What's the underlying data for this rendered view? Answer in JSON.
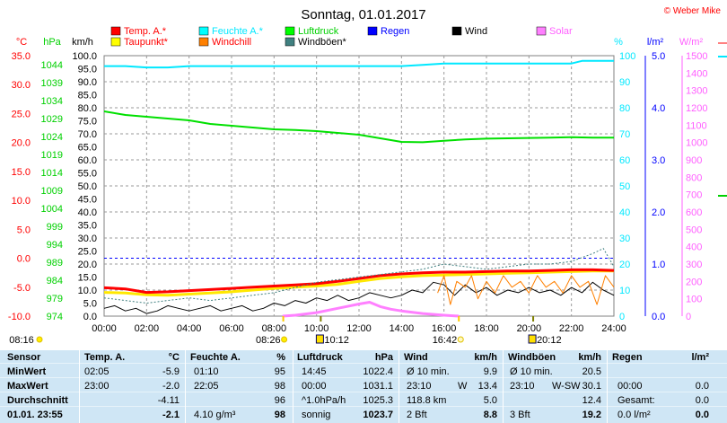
{
  "header": {
    "title": "Sonntag, 01.01.2017",
    "copyright": "© Weber Mike"
  },
  "legend": [
    {
      "label": "Temp. A.*",
      "color": "#ff0000"
    },
    {
      "label": "Feuchte A.*",
      "color": "#00ffff"
    },
    {
      "label": "Luftdruck",
      "color": "#00ff00"
    },
    {
      "label": "Regen",
      "color": "#0000ff"
    },
    {
      "label": "Wind",
      "color": "#000000"
    },
    {
      "label": "Solar",
      "color": "#ff80ff"
    },
    {
      "label": "Taupunkt*",
      "color": "#ffff00"
    },
    {
      "label": "Windchill",
      "color": "#ff8000"
    },
    {
      "label": "Windböen*",
      "color": "#408080"
    }
  ],
  "axis_units": {
    "temp": "°C",
    "pressure": "hPa",
    "wind": "km/h",
    "humidity": "%",
    "rain": "l/m²",
    "solar": "W/m²"
  },
  "sun_markers": {
    "sunrise_left": "08:16",
    "sunrise": "08:26",
    "moonset": "10:12",
    "sunset": "16:42",
    "moonrise": "20:12"
  },
  "chart_data": {
    "type": "line",
    "x_unit": "time",
    "x_ticks": [
      "00:00",
      "02:00",
      "04:00",
      "06:00",
      "08:00",
      "10:00",
      "12:00",
      "14:00",
      "16:00",
      "18:00",
      "20:00",
      "22:00",
      "24:00"
    ],
    "axes": {
      "temp": {
        "label": "°C",
        "range": [
          -10,
          35
        ],
        "ticks": [
          "35.0",
          "30.0",
          "25.0",
          "20.0",
          "15.0",
          "10.0",
          "5.0",
          "0.0",
          "-5.0",
          "-10.0"
        ]
      },
      "pressure": {
        "label": "hPa",
        "range": [
          974,
          1046.5
        ],
        "ticks": [
          "1044",
          "1039",
          "1034",
          "1029",
          "1024",
          "1019",
          "1014",
          "1009",
          "1004",
          "999",
          "994",
          "989",
          "984",
          "979",
          "974"
        ]
      },
      "wind": {
        "label": "km/h",
        "range": [
          0,
          100
        ],
        "ticks": [
          "100.0",
          "95.0",
          "90.0",
          "85.0",
          "80.0",
          "75.0",
          "70.0",
          "65.0",
          "60.0",
          "55.0",
          "50.0",
          "45.0",
          "40.0",
          "35.0",
          "30.0",
          "25.0",
          "20.0",
          "15.0",
          "10.0",
          "5.0",
          "0.0"
        ]
      },
      "humidity": {
        "label": "%",
        "range": [
          0,
          100
        ],
        "ticks": [
          "100",
          "90",
          "80",
          "70",
          "60",
          "50",
          "40",
          "30",
          "20",
          "10",
          "0"
        ]
      },
      "rain": {
        "label": "l/m²",
        "range": [
          0,
          5
        ],
        "ticks": [
          "5.0",
          "4.0",
          "3.0",
          "2.0",
          "1.0",
          "0.0"
        ]
      },
      "solar": {
        "label": "W/m²",
        "range": [
          0,
          1500
        ],
        "ticks": [
          "1500",
          "1400",
          "1300",
          "1200",
          "1100",
          "1000",
          "900",
          "800",
          "700",
          "600",
          "500",
          "400",
          "300",
          "200",
          "100",
          "0"
        ]
      }
    },
    "series": [
      {
        "name": "Luftdruck",
        "axis": "pressure",
        "color": "#00e000",
        "width": 2,
        "points": [
          [
            0,
            1031.0
          ],
          [
            1,
            1030.0
          ],
          [
            2,
            1029.5
          ],
          [
            3,
            1029.0
          ],
          [
            4,
            1028.5
          ],
          [
            5,
            1027.5
          ],
          [
            6,
            1027.0
          ],
          [
            7,
            1026.5
          ],
          [
            8,
            1026.0
          ],
          [
            9,
            1025.8
          ],
          [
            10,
            1025.5
          ],
          [
            11,
            1025.0
          ],
          [
            12,
            1024.5
          ],
          [
            13,
            1023.5
          ],
          [
            14,
            1022.5
          ],
          [
            15,
            1022.4
          ],
          [
            16,
            1022.8
          ],
          [
            17,
            1023.2
          ],
          [
            18,
            1023.4
          ],
          [
            19,
            1023.5
          ],
          [
            20,
            1023.6
          ],
          [
            21,
            1023.7
          ],
          [
            22,
            1023.8
          ],
          [
            23,
            1023.7
          ],
          [
            24,
            1023.7
          ]
        ]
      },
      {
        "name": "Feuchte A.",
        "axis": "humidity",
        "color": "#00e8ff",
        "width": 2,
        "points": [
          [
            0,
            96
          ],
          [
            1,
            96
          ],
          [
            2,
            95.5
          ],
          [
            3,
            95.5
          ],
          [
            4,
            96
          ],
          [
            5,
            96
          ],
          [
            6,
            96
          ],
          [
            7,
            96
          ],
          [
            8,
            96
          ],
          [
            9,
            96
          ],
          [
            10,
            96
          ],
          [
            11,
            96
          ],
          [
            12,
            96
          ],
          [
            13,
            96
          ],
          [
            14,
            96
          ],
          [
            15,
            96.5
          ],
          [
            16,
            97
          ],
          [
            17,
            97
          ],
          [
            18,
            97
          ],
          [
            19,
            97
          ],
          [
            20,
            97
          ],
          [
            21,
            97
          ],
          [
            22,
            97
          ],
          [
            22.5,
            98
          ],
          [
            23,
            98
          ],
          [
            24,
            98
          ]
        ]
      },
      {
        "name": "Taupunkt",
        "axis": "temp",
        "color": "#ffe800",
        "width": 3,
        "points": [
          [
            0,
            -5.9
          ],
          [
            1,
            -6.0
          ],
          [
            2,
            -6.3
          ],
          [
            3,
            -6.4
          ],
          [
            4,
            -6.2
          ],
          [
            5,
            -6.0
          ],
          [
            6,
            -5.8
          ],
          [
            7,
            -5.5
          ],
          [
            8,
            -5.2
          ],
          [
            9,
            -5.0
          ],
          [
            10,
            -4.8
          ],
          [
            11,
            -4.5
          ],
          [
            12,
            -4.0
          ],
          [
            13,
            -3.5
          ],
          [
            14,
            -3.2
          ],
          [
            15,
            -3.0
          ],
          [
            16,
            -2.9
          ],
          [
            17,
            -2.8
          ],
          [
            18,
            -2.7
          ],
          [
            19,
            -2.6
          ],
          [
            20,
            -2.5
          ],
          [
            21,
            -2.4
          ],
          [
            22,
            -2.3
          ],
          [
            23,
            -2.2
          ],
          [
            24,
            -2.2
          ]
        ]
      },
      {
        "name": "Temp. A.",
        "axis": "temp",
        "color": "#ff0000",
        "width": 3,
        "points": [
          [
            0,
            -5.1
          ],
          [
            1,
            -5.3
          ],
          [
            2,
            -5.9
          ],
          [
            3,
            -5.8
          ],
          [
            4,
            -5.6
          ],
          [
            5,
            -5.4
          ],
          [
            6,
            -5.2
          ],
          [
            7,
            -5.0
          ],
          [
            8,
            -4.8
          ],
          [
            9,
            -4.6
          ],
          [
            10,
            -4.4
          ],
          [
            11,
            -4.0
          ],
          [
            12,
            -3.5
          ],
          [
            13,
            -3.0
          ],
          [
            14,
            -2.7
          ],
          [
            15,
            -2.5
          ],
          [
            16,
            -2.4
          ],
          [
            17,
            -2.4
          ],
          [
            18,
            -2.3
          ],
          [
            19,
            -2.2
          ],
          [
            20,
            -2.2
          ],
          [
            21,
            -2.1
          ],
          [
            22,
            -2.0
          ],
          [
            23,
            -2.0
          ],
          [
            24,
            -2.1
          ]
        ]
      },
      {
        "name": "Solar",
        "axis": "solar",
        "color": "#ff80ff",
        "width": 3,
        "points": [
          [
            8.4,
            0
          ],
          [
            9,
            5
          ],
          [
            10,
            20
          ],
          [
            11,
            45
          ],
          [
            12,
            70
          ],
          [
            12.5,
            80
          ],
          [
            13,
            55
          ],
          [
            13.5,
            40
          ],
          [
            14,
            30
          ],
          [
            15,
            15
          ],
          [
            16,
            5
          ],
          [
            16.7,
            0
          ]
        ]
      },
      {
        "name": "Windböen",
        "axis": "wind",
        "color": "#408080",
        "width": 1,
        "dotted": true,
        "points": [
          [
            0,
            7
          ],
          [
            1,
            6
          ],
          [
            2,
            5
          ],
          [
            3,
            6
          ],
          [
            4,
            7
          ],
          [
            5,
            6
          ],
          [
            6,
            7
          ],
          [
            7,
            8
          ],
          [
            8,
            9
          ],
          [
            9,
            11
          ],
          [
            10,
            13
          ],
          [
            11,
            14
          ],
          [
            12,
            15
          ],
          [
            13,
            16
          ],
          [
            14,
            17
          ],
          [
            15,
            18
          ],
          [
            16,
            20
          ],
          [
            17,
            19
          ],
          [
            18,
            18
          ],
          [
            19,
            19
          ],
          [
            20,
            20
          ],
          [
            21,
            20
          ],
          [
            22,
            21
          ],
          [
            23,
            24
          ],
          [
            23.5,
            26
          ],
          [
            24,
            19
          ]
        ]
      },
      {
        "name": "Wind",
        "axis": "wind",
        "color": "#000000",
        "width": 1,
        "points": [
          [
            0,
            3
          ],
          [
            0.5,
            4
          ],
          [
            1,
            2
          ],
          [
            1.5,
            3
          ],
          [
            2,
            1
          ],
          [
            2.5,
            2
          ],
          [
            3,
            4
          ],
          [
            3.5,
            3
          ],
          [
            4,
            2
          ],
          [
            4.5,
            3
          ],
          [
            5,
            4
          ],
          [
            5.5,
            2
          ],
          [
            6,
            3
          ],
          [
            6.5,
            4
          ],
          [
            7,
            2
          ],
          [
            7.5,
            3
          ],
          [
            8,
            5
          ],
          [
            8.5,
            4
          ],
          [
            9,
            6
          ],
          [
            9.5,
            5
          ],
          [
            10,
            7
          ],
          [
            10.5,
            6
          ],
          [
            11,
            8
          ],
          [
            11.5,
            6
          ],
          [
            12,
            7
          ],
          [
            12.5,
            9
          ],
          [
            13,
            8
          ],
          [
            13.5,
            7
          ],
          [
            14,
            8
          ],
          [
            14.5,
            10
          ],
          [
            15,
            9
          ],
          [
            15.5,
            13
          ],
          [
            16,
            12
          ],
          [
            16.5,
            8
          ],
          [
            17,
            12
          ],
          [
            17.5,
            9
          ],
          [
            18,
            11
          ],
          [
            18.5,
            8
          ],
          [
            19,
            10
          ],
          [
            19.5,
            9
          ],
          [
            20,
            11
          ],
          [
            20.5,
            9
          ],
          [
            21,
            10
          ],
          [
            21.5,
            8
          ],
          [
            22,
            11
          ],
          [
            22.5,
            9
          ],
          [
            23,
            13
          ],
          [
            23.5,
            10
          ],
          [
            24,
            8
          ]
        ]
      },
      {
        "name": "Windchill",
        "axis": "temp",
        "color": "#ff8000",
        "width": 1,
        "points": [
          [
            15.7,
            -6
          ],
          [
            16,
            -3
          ],
          [
            16.3,
            -8
          ],
          [
            16.6,
            -4
          ],
          [
            17,
            -5
          ],
          [
            17.3,
            -3
          ],
          [
            17.6,
            -7
          ],
          [
            18,
            -4
          ],
          [
            18.4,
            -6
          ],
          [
            18.8,
            -3
          ],
          [
            19.2,
            -5
          ],
          [
            19.6,
            -4
          ],
          [
            20,
            -6
          ],
          [
            20.4,
            -3
          ],
          [
            20.8,
            -5
          ],
          [
            21.2,
            -4
          ],
          [
            21.6,
            -6
          ],
          [
            22,
            -3
          ],
          [
            22.4,
            -5
          ],
          [
            22.8,
            -4
          ],
          [
            23.2,
            -8
          ],
          [
            23.6,
            -3
          ],
          [
            24,
            -5
          ]
        ]
      }
    ],
    "reference_lines": [
      {
        "axis": "temp",
        "value": 0.0,
        "color": "#0000ff",
        "dashed": true
      }
    ]
  },
  "table": {
    "headers": [
      "Sensor",
      "Temp. A.",
      "°C",
      "Feuchte A.",
      "%",
      "Luftdruck",
      "hPa",
      "Wind",
      "km/h",
      "Windböen",
      "km/h",
      "Regen",
      "l/m²"
    ],
    "rows": [
      {
        "label": "MinWert",
        "temp_time": "02:05",
        "temp_val": "-5.9",
        "hum_time": "01:10",
        "hum_val": "95",
        "pres_time": "14:45",
        "pres_val": "1022.4",
        "wind_time": "Ø 10 min.",
        "wind_dir": "",
        "wind_val": "9.9",
        "gust_time": "Ø 10 min.",
        "gust_dir": "",
        "gust_val": "20.5",
        "rain_time": "",
        "rain_val": ""
      },
      {
        "label": "MaxWert",
        "temp_time": "23:00",
        "temp_val": "-2.0",
        "hum_time": "22:05",
        "hum_val": "98",
        "pres_time": "00:00",
        "pres_val": "1031.1",
        "wind_time": "23:10",
        "wind_dir": "W",
        "wind_val": "13.4",
        "gust_time": "23:10",
        "gust_dir": "W-SW",
        "gust_val": "30.1",
        "rain_time": "00:00",
        "rain_val": "0.0"
      },
      {
        "label": "Durchschnitt",
        "temp_time": "",
        "temp_val": "-4.11",
        "hum_time": "",
        "hum_val": "96",
        "pres_time": "^1.0hPa/h",
        "pres_val": "1025.3",
        "wind_time": "118.8 km",
        "wind_dir": "",
        "wind_val": "5.0",
        "gust_time": "",
        "gust_dir": "",
        "gust_val": "12.4",
        "rain_time": "Gesamt:",
        "rain_val": "0.0"
      },
      {
        "label": "01.01. 23:55",
        "temp_time": "",
        "temp_val": "-2.1",
        "hum_time": "4.10 g/m³",
        "hum_val": "98",
        "pres_time": "sonnig",
        "pres_val": "1023.7",
        "wind_time": "2 Bft",
        "wind_dir": "",
        "wind_val": "8.8",
        "gust_time": "3 Bft",
        "gust_dir": "",
        "gust_val": "19.2",
        "rain_time": "0.0 l/m²",
        "rain_val": "0.0"
      }
    ]
  }
}
